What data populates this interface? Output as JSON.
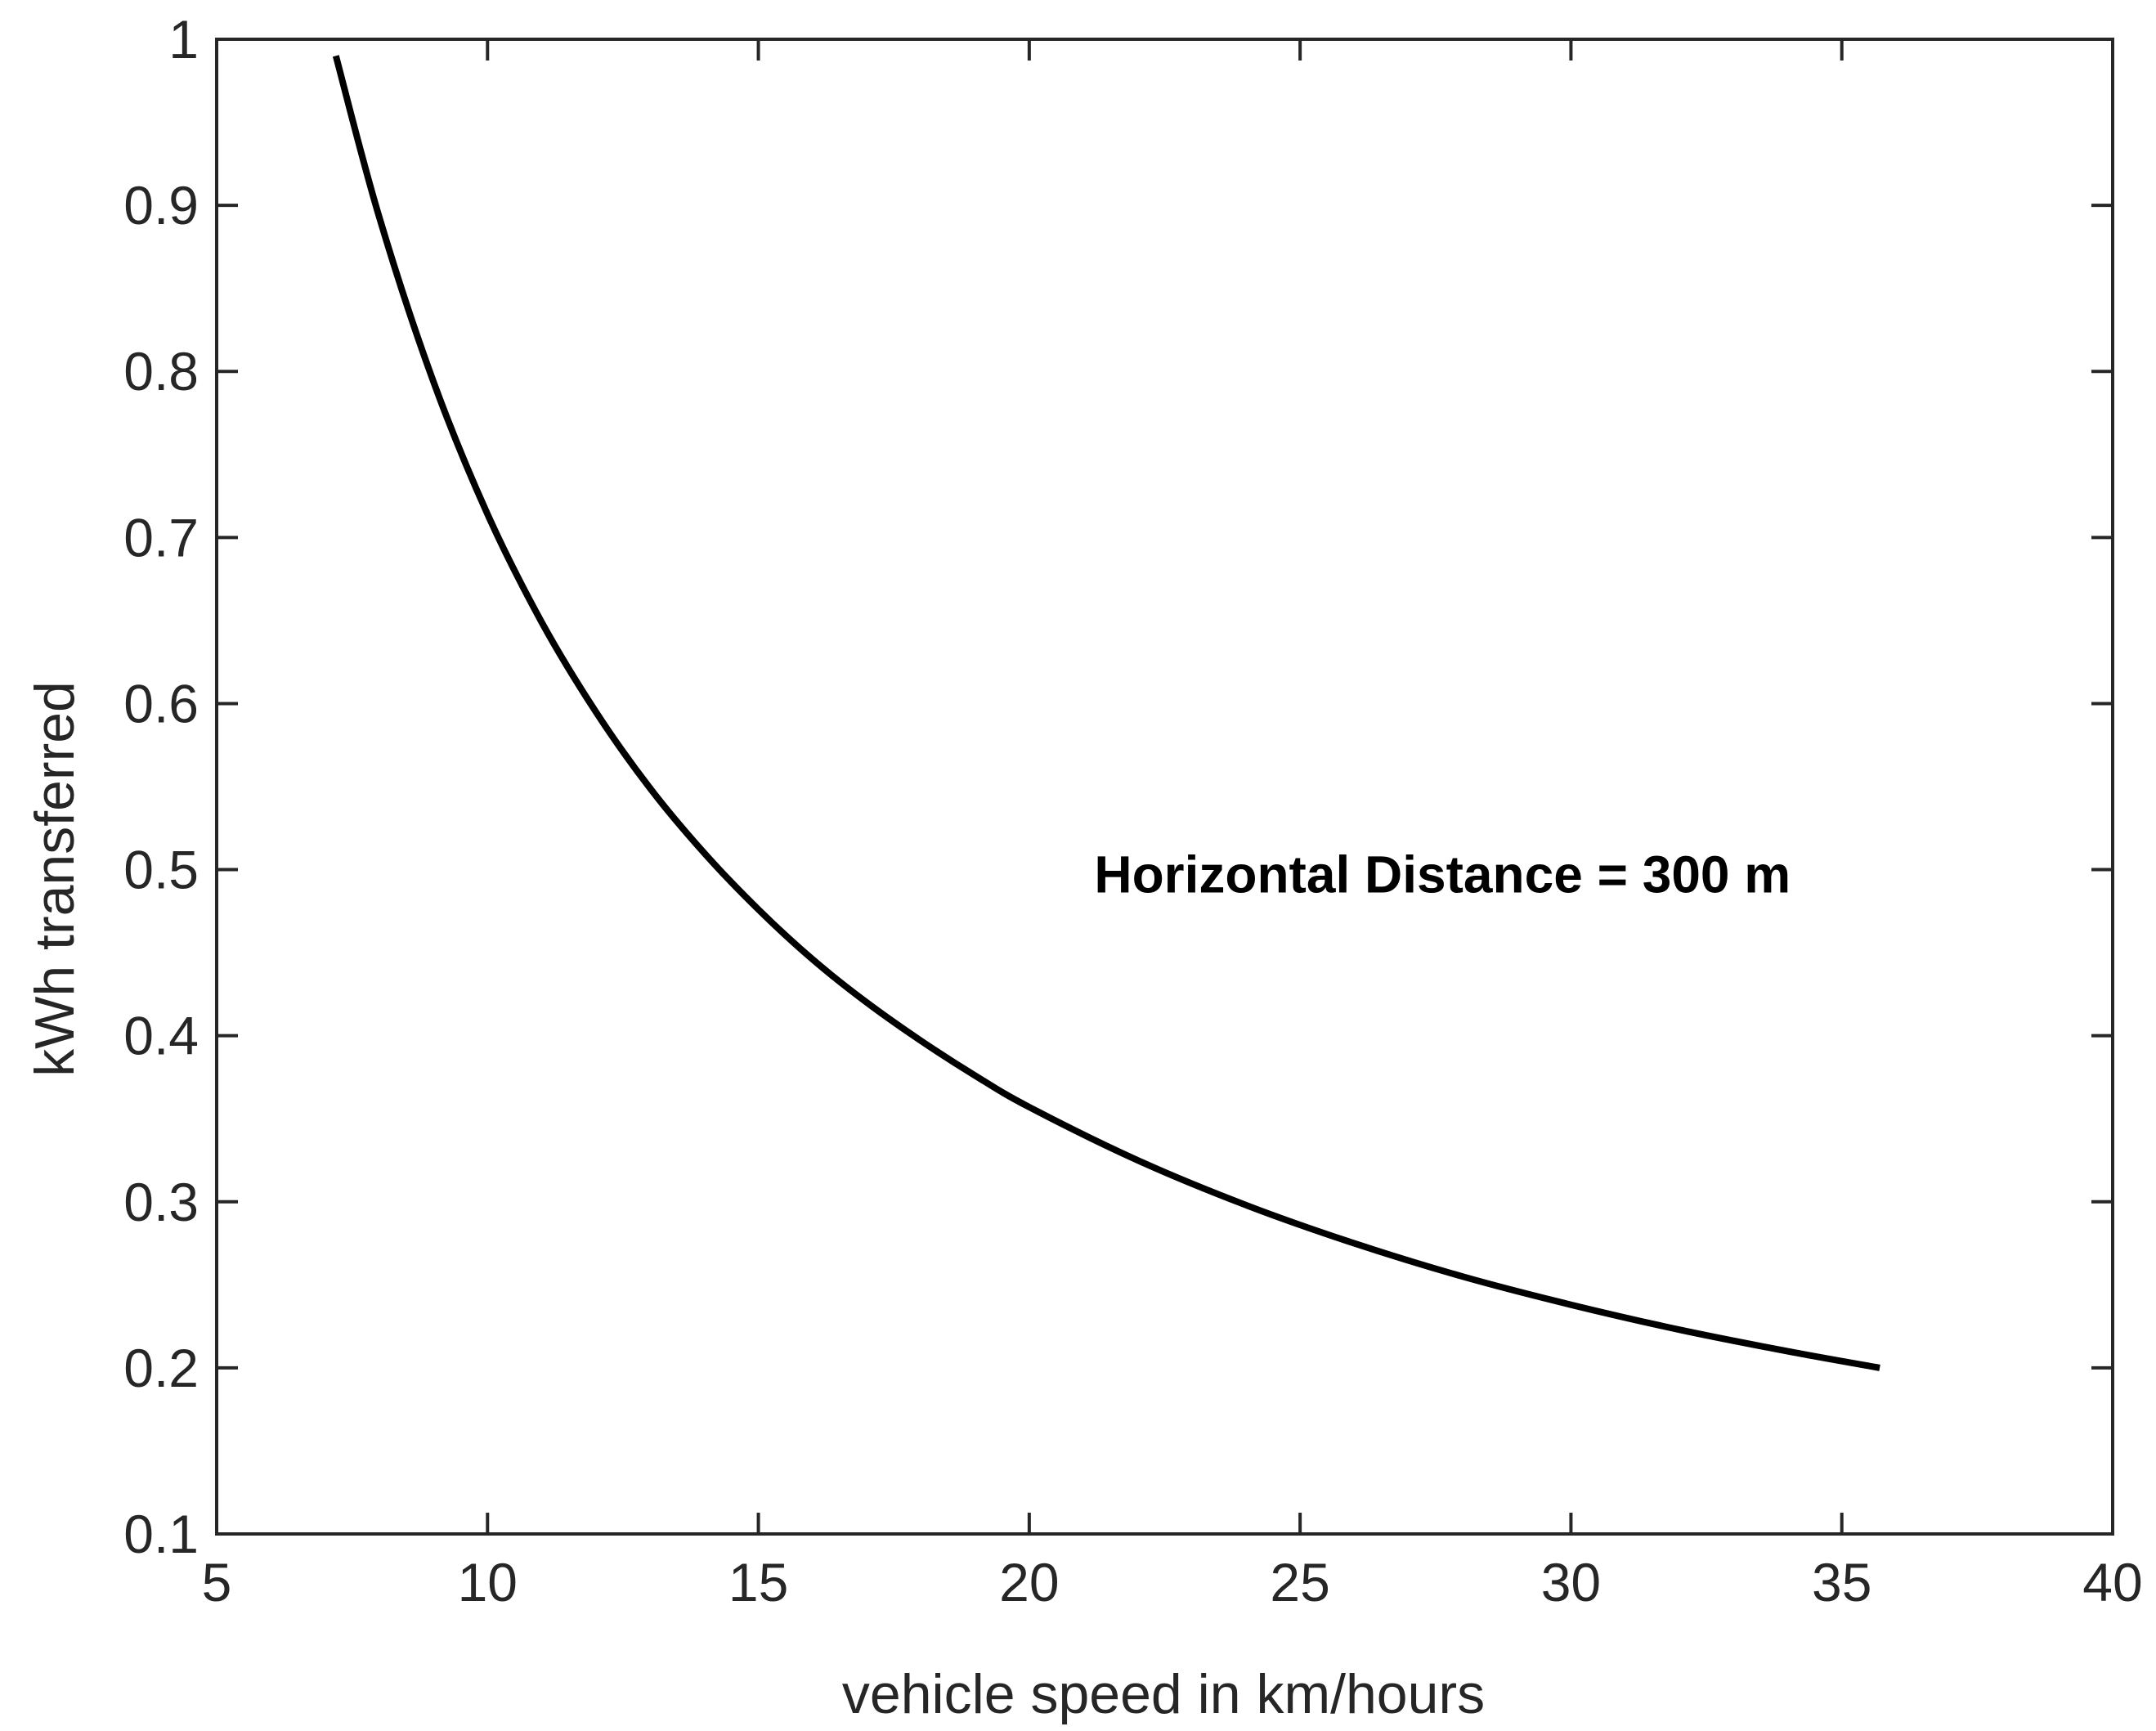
{
  "chart_data": {
    "type": "line",
    "title": "",
    "xlabel": "vehicle speed in km/hours",
    "ylabel": "kWh transferred",
    "xlim": [
      5,
      40
    ],
    "ylim": [
      0.1,
      1
    ],
    "xticks": [
      5,
      10,
      15,
      20,
      25,
      30,
      35,
      40
    ],
    "yticks": [
      0.1,
      0.2,
      0.3,
      0.4,
      0.5,
      0.6,
      0.7,
      0.8,
      0.9,
      1
    ],
    "xtick_labels": [
      "5",
      "10",
      "15",
      "20",
      "25",
      "30",
      "35",
      "40"
    ],
    "ytick_labels": [
      "0.1",
      "0.2",
      "0.3",
      "0.4",
      "0.5",
      "0.6",
      "0.7",
      "0.8",
      "0.9",
      "1"
    ],
    "grid": false,
    "series": [
      {
        "color": "#000000",
        "x": [
          7.2,
          8,
          9,
          10,
          11,
          12,
          13,
          14,
          15,
          16,
          17,
          18,
          19,
          20,
          22,
          24,
          26,
          28,
          30,
          32,
          34,
          35.7
        ],
        "y": [
          0.99,
          0.893,
          0.794,
          0.714,
          0.649,
          0.595,
          0.549,
          0.51,
          0.476,
          0.446,
          0.42,
          0.397,
          0.376,
          0.357,
          0.325,
          0.298,
          0.275,
          0.255,
          0.238,
          0.223,
          0.21,
          0.2
        ]
      }
    ],
    "annotations": [
      {
        "text": "Horizontal Distance = 300 m",
        "x": 21.2,
        "y": 0.497
      }
    ],
    "colors": {
      "axis": "#262626",
      "line": "#000000",
      "background": "#ffffff"
    }
  }
}
